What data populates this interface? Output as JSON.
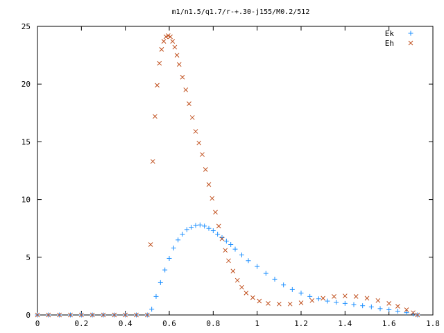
{
  "chart_data": {
    "type": "scatter",
    "title": "m1/n1.5/q1.7/r-+.30-j155/M0.2/512",
    "xlabel": "",
    "ylabel": "",
    "xlim": [
      0,
      1.8
    ],
    "ylim": [
      0,
      25
    ],
    "xticks": [
      "0",
      "0.2",
      "0.4",
      "0.6",
      "0.8",
      "1",
      "1.2",
      "1.4",
      "1.6",
      "1.8"
    ],
    "yticks": [
      "0",
      "5",
      "10",
      "15",
      "20",
      "25"
    ],
    "grid": false,
    "legend_position": "top-right",
    "series": [
      {
        "name": "Ek",
        "marker": "plus",
        "color": "#1e90ff",
        "points": [
          [
            0.0,
            0
          ],
          [
            0.05,
            0
          ],
          [
            0.1,
            0
          ],
          [
            0.15,
            0
          ],
          [
            0.2,
            0
          ],
          [
            0.25,
            0
          ],
          [
            0.3,
            0
          ],
          [
            0.35,
            0
          ],
          [
            0.4,
            0
          ],
          [
            0.45,
            0
          ],
          [
            0.5,
            0
          ],
          [
            0.52,
            0.5
          ],
          [
            0.54,
            1.6
          ],
          [
            0.56,
            2.8
          ],
          [
            0.58,
            3.9
          ],
          [
            0.6,
            4.9
          ],
          [
            0.62,
            5.8
          ],
          [
            0.64,
            6.5
          ],
          [
            0.66,
            7.0
          ],
          [
            0.68,
            7.4
          ],
          [
            0.7,
            7.6
          ],
          [
            0.72,
            7.75
          ],
          [
            0.74,
            7.8
          ],
          [
            0.76,
            7.7
          ],
          [
            0.78,
            7.5
          ],
          [
            0.8,
            7.3
          ],
          [
            0.82,
            7.0
          ],
          [
            0.84,
            6.7
          ],
          [
            0.86,
            6.4
          ],
          [
            0.88,
            6.1
          ],
          [
            0.9,
            5.7
          ],
          [
            0.93,
            5.2
          ],
          [
            0.96,
            4.7
          ],
          [
            1.0,
            4.2
          ],
          [
            1.04,
            3.6
          ],
          [
            1.08,
            3.1
          ],
          [
            1.12,
            2.6
          ],
          [
            1.16,
            2.2
          ],
          [
            1.2,
            1.9
          ],
          [
            1.24,
            1.6
          ],
          [
            1.28,
            1.4
          ],
          [
            1.32,
            1.2
          ],
          [
            1.36,
            1.1
          ],
          [
            1.4,
            1.0
          ],
          [
            1.44,
            0.9
          ],
          [
            1.48,
            0.8
          ],
          [
            1.52,
            0.7
          ],
          [
            1.56,
            0.55
          ],
          [
            1.6,
            0.45
          ],
          [
            1.64,
            0.33
          ],
          [
            1.68,
            0.2
          ],
          [
            1.71,
            0.08
          ],
          [
            1.73,
            0.0
          ]
        ]
      },
      {
        "name": "Eh",
        "marker": "cross",
        "color": "#c0501e",
        "points": [
          [
            0.0,
            0
          ],
          [
            0.05,
            0
          ],
          [
            0.1,
            0
          ],
          [
            0.15,
            0
          ],
          [
            0.2,
            0
          ],
          [
            0.25,
            0
          ],
          [
            0.3,
            0
          ],
          [
            0.35,
            0
          ],
          [
            0.4,
            0
          ],
          [
            0.45,
            0
          ],
          [
            0.5,
            0
          ],
          [
            0.515,
            6.1
          ],
          [
            0.525,
            13.3
          ],
          [
            0.535,
            17.2
          ],
          [
            0.545,
            19.9
          ],
          [
            0.555,
            21.8
          ],
          [
            0.565,
            23.0
          ],
          [
            0.575,
            23.7
          ],
          [
            0.585,
            24.1
          ],
          [
            0.595,
            24.2
          ],
          [
            0.605,
            24.1
          ],
          [
            0.615,
            23.7
          ],
          [
            0.625,
            23.2
          ],
          [
            0.635,
            22.5
          ],
          [
            0.645,
            21.7
          ],
          [
            0.66,
            20.6
          ],
          [
            0.675,
            19.5
          ],
          [
            0.69,
            18.3
          ],
          [
            0.705,
            17.1
          ],
          [
            0.72,
            15.9
          ],
          [
            0.735,
            14.9
          ],
          [
            0.75,
            13.9
          ],
          [
            0.765,
            12.6
          ],
          [
            0.78,
            11.3
          ],
          [
            0.795,
            10.1
          ],
          [
            0.81,
            8.9
          ],
          [
            0.825,
            7.7
          ],
          [
            0.84,
            6.6
          ],
          [
            0.855,
            5.6
          ],
          [
            0.87,
            4.7
          ],
          [
            0.89,
            3.8
          ],
          [
            0.91,
            3.0
          ],
          [
            0.93,
            2.4
          ],
          [
            0.95,
            1.9
          ],
          [
            0.98,
            1.5
          ],
          [
            1.01,
            1.2
          ],
          [
            1.05,
            1.0
          ],
          [
            1.1,
            0.95
          ],
          [
            1.15,
            0.95
          ],
          [
            1.2,
            1.05
          ],
          [
            1.25,
            1.25
          ],
          [
            1.3,
            1.45
          ],
          [
            1.35,
            1.6
          ],
          [
            1.4,
            1.65
          ],
          [
            1.45,
            1.6
          ],
          [
            1.5,
            1.45
          ],
          [
            1.55,
            1.25
          ],
          [
            1.6,
            1.0
          ],
          [
            1.64,
            0.75
          ],
          [
            1.68,
            0.45
          ],
          [
            1.71,
            0.2
          ],
          [
            1.73,
            0.0
          ]
        ]
      }
    ]
  }
}
